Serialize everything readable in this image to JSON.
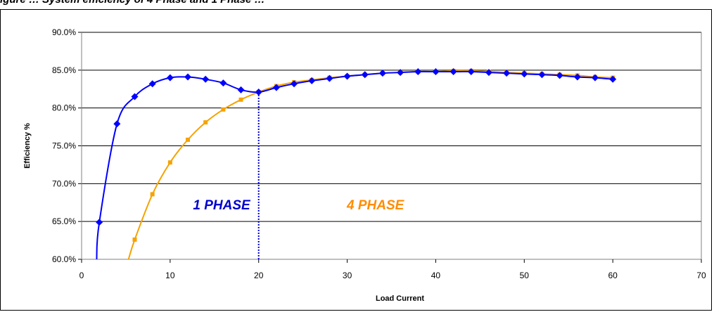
{
  "figure": {
    "caption": "igure … System efficiency of 4 Phase and 1 Phase …"
  },
  "chart_data": {
    "type": "line",
    "title": "",
    "xlabel": "Load Current",
    "ylabel": "Efficiency %",
    "xlim": [
      0,
      70
    ],
    "ylim": [
      60,
      90
    ],
    "x_ticks": [
      0,
      10,
      20,
      30,
      40,
      50,
      60,
      70
    ],
    "x_tick_labels": [
      "0",
      "10",
      "20",
      "30",
      "40",
      "50",
      "60",
      "70"
    ],
    "y_ticks": [
      60,
      65,
      70,
      75,
      80,
      85,
      90
    ],
    "y_tick_labels": [
      "60.0%",
      "65.0%",
      "70.0%",
      "75.0%",
      "80.0%",
      "85.0%",
      "90.0%"
    ],
    "grid": "horizontal",
    "series": [
      {
        "name": "1 PHASE",
        "color": "#0000ff",
        "marker": "diamond",
        "x": [
          2,
          4,
          6,
          8,
          10,
          12,
          14,
          16,
          18,
          20,
          22,
          24,
          26,
          28,
          30,
          32,
          34,
          36,
          38,
          40,
          42,
          44,
          46,
          48,
          50,
          52,
          54,
          56,
          58,
          60
        ],
        "y": [
          64.9,
          77.9,
          81.5,
          83.2,
          84.0,
          84.1,
          83.8,
          83.3,
          82.4,
          82.1,
          82.7,
          83.2,
          83.6,
          83.9,
          84.2,
          84.4,
          84.6,
          84.7,
          84.8,
          84.8,
          84.8,
          84.8,
          84.7,
          84.6,
          84.5,
          84.4,
          84.3,
          84.1,
          84.0,
          83.8
        ]
      },
      {
        "name": "4 PHASE",
        "color": "#f5a300",
        "marker": "square",
        "x": [
          6,
          8,
          10,
          12,
          14,
          16,
          18,
          20,
          22,
          24,
          26,
          28,
          30,
          32,
          34,
          36,
          38,
          40,
          42,
          44,
          46,
          48,
          50,
          52,
          54,
          56,
          58,
          60
        ],
        "y": [
          62.6,
          68.6,
          72.8,
          75.8,
          78.1,
          79.8,
          81.1,
          82.1,
          82.9,
          83.4,
          83.7,
          84.0,
          84.2,
          84.4,
          84.6,
          84.7,
          84.8,
          84.8,
          84.9,
          84.9,
          84.8,
          84.7,
          84.6,
          84.5,
          84.4,
          84.3,
          84.1,
          84.0
        ]
      }
    ],
    "series_start_points": [
      {
        "name": "1 PHASE",
        "x": 1.7,
        "y": 60
      },
      {
        "name": "4 PHASE",
        "x": 5.3,
        "y": 60
      }
    ],
    "annotations": [
      {
        "text": "1 PHASE",
        "color": "#0000cc",
        "x": 20,
        "y": 66.6
      },
      {
        "text": "4 PHASE",
        "color": "#ff8c00",
        "x": 29,
        "y": 66.6
      }
    ],
    "crossover": {
      "x": 20,
      "y_from": 60,
      "y_to": 82.1,
      "color": "#0000cc",
      "style": "dotted"
    }
  }
}
